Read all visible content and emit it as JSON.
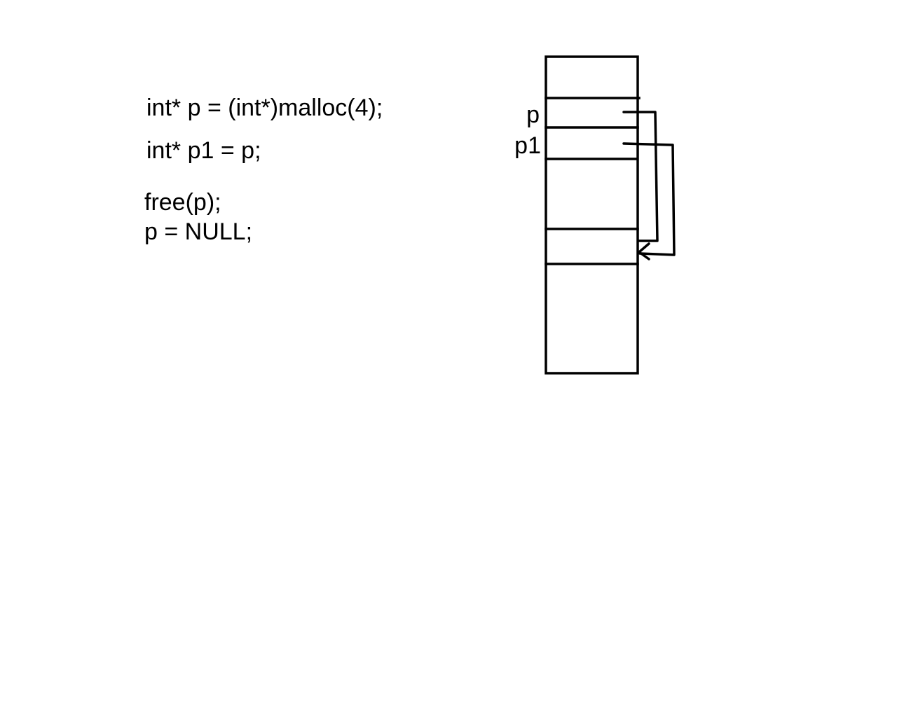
{
  "code": {
    "lines": [
      "int* p = (int*)malloc(4);",
      "int* p1 = p;",
      "free(p);",
      "p = NULL;"
    ]
  },
  "memory": {
    "labels": {
      "p": "p",
      "p1": "p1"
    },
    "cells": [
      {
        "role": "empty"
      },
      {
        "role": "variable",
        "label_key": "p"
      },
      {
        "role": "variable",
        "label_key": "p1"
      },
      {
        "role": "empty"
      },
      {
        "role": "heap-block",
        "pointed_by": [
          "p",
          "p1"
        ]
      },
      {
        "role": "empty"
      }
    ]
  },
  "colors": {
    "stroke": "#000000",
    "background": "#ffffff"
  }
}
